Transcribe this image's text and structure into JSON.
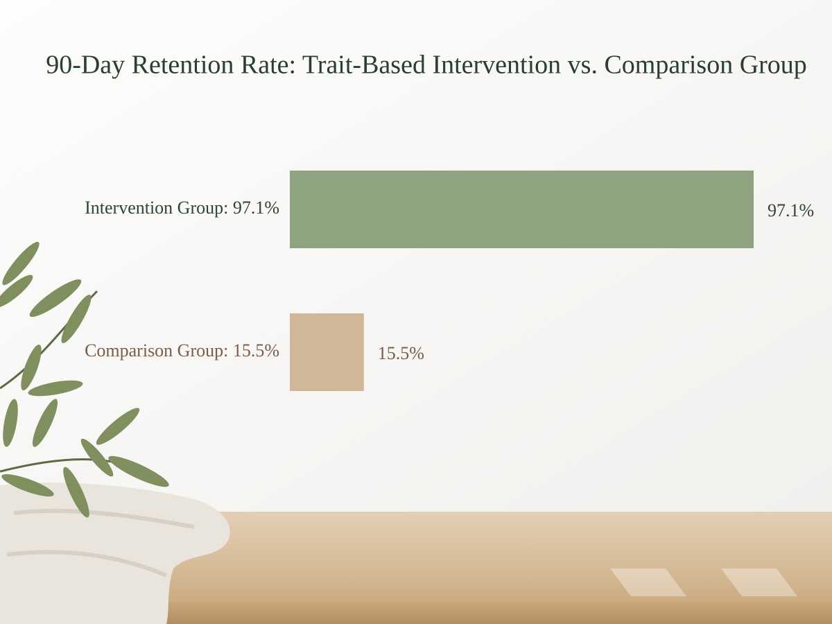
{
  "chart_data": {
    "type": "bar",
    "orientation": "horizontal",
    "title": "90-Day Retention Rate: Trait-Based Intervention vs. Comparison Group",
    "categories": [
      "Intervention Group: 97.1%",
      "Comparison Group: 15.5%"
    ],
    "values": [
      97.1,
      15.5
    ],
    "value_labels": [
      "97.1%",
      "15.5%"
    ],
    "colors": [
      "#8ea37f",
      "#cfb797"
    ],
    "label_colors": [
      "#2c4630",
      "#7b5c46"
    ]
  }
}
